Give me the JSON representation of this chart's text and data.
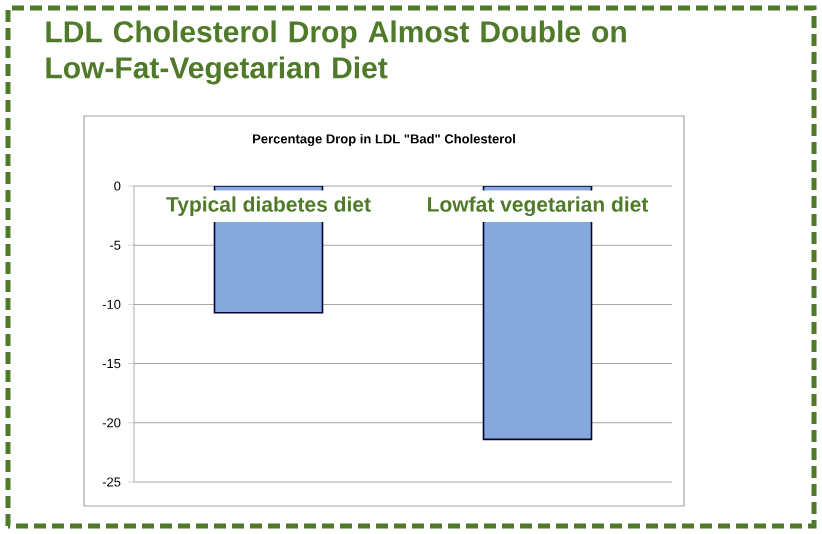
{
  "chart_data": {
    "type": "bar",
    "title": "LDL Cholesterol Drop Almost Double on Low-Fat-Vegetarian Diet",
    "subtitle": "Percentage Drop in LDL \"Bad\" Cholesterol",
    "categories": [
      "Typical diabetes diet",
      "Lowfat vegetarian diet"
    ],
    "values": [
      -10.7,
      -21.4
    ],
    "color": "#86a9dc",
    "ylim": [
      -25,
      0
    ],
    "yticks": [
      0,
      -5,
      -10,
      -15,
      -20,
      -25
    ],
    "grid": "y"
  }
}
